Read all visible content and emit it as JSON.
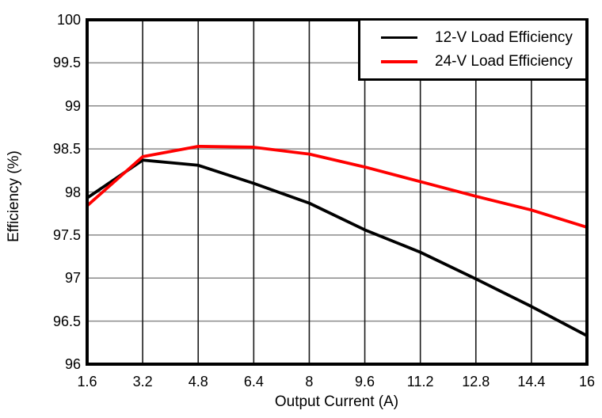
{
  "chart_data": {
    "type": "line",
    "title": "",
    "xlabel": "Output Current (A)",
    "ylabel": "Efficiency (%)",
    "xlim": [
      1.6,
      16
    ],
    "ylim": [
      96,
      100
    ],
    "grid": true,
    "legend_position": "top-right",
    "x": [
      1.6,
      3.2,
      4.8,
      6.4,
      8,
      9.6,
      11.2,
      12.8,
      14.4,
      16
    ],
    "xtick_labels": [
      "1.6",
      "3.2",
      "4.8",
      "6.4",
      "8",
      "9.6",
      "11.2",
      "12.8",
      "14.4",
      "16"
    ],
    "ytick_values": [
      96,
      96.5,
      97,
      97.5,
      98,
      98.5,
      99,
      99.5,
      100
    ],
    "ytick_labels": [
      "96",
      "96.5",
      "97",
      "97.5",
      "98",
      "98.5",
      "99",
      "99.5",
      "100"
    ],
    "series": [
      {
        "name": "12-V Load Efficiency",
        "color": "#000000",
        "values": [
          97.93,
          98.37,
          98.31,
          98.1,
          97.87,
          97.56,
          97.3,
          96.99,
          96.67,
          96.33
        ]
      },
      {
        "name": "24-V Load Efficiency",
        "color": "#ff0000",
        "values": [
          97.84,
          98.41,
          98.53,
          98.52,
          98.44,
          98.29,
          98.12,
          97.95,
          97.79,
          97.59
        ]
      }
    ],
    "colors": {
      "grid_horizontal": "#8a8a8a",
      "grid_vertical": "#1a1a1a",
      "frame": "#000000",
      "background": "#ffffff"
    }
  }
}
